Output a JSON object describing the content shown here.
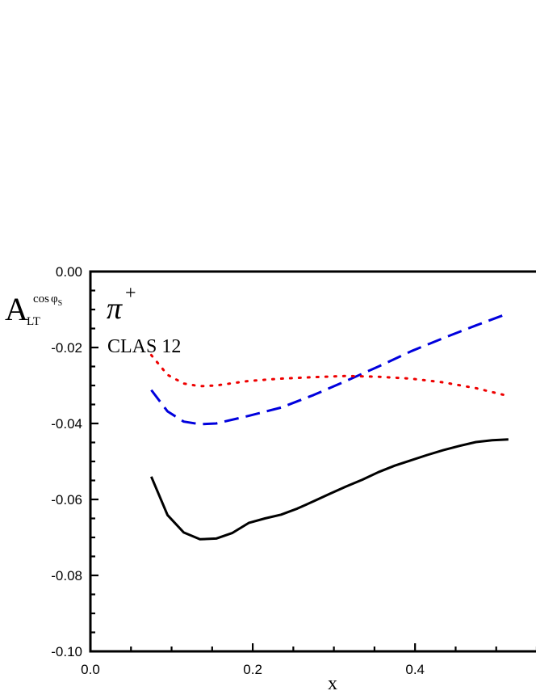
{
  "chart_data": {
    "type": "line",
    "xlabel": "x",
    "ylabel": {
      "base": "A",
      "subscript": "LT",
      "superscript_main": "cos",
      "superscript_phi": "φ",
      "superscript_sub": "S"
    },
    "annotations": {
      "particle": "π",
      "particle_charge": "+",
      "experiment": "CLAS 12"
    },
    "xlim": [
      0.0,
      0.55
    ],
    "ylim": [
      -0.1,
      0.0
    ],
    "x_ticks": [
      {
        "value": 0.0,
        "label": "0.0"
      },
      {
        "value": 0.2,
        "label": "0.2"
      },
      {
        "value": 0.4,
        "label": "0.4"
      }
    ],
    "y_ticks": [
      {
        "value": 0.0,
        "label": "0.00"
      },
      {
        "value": -0.02,
        "label": "-0.02"
      },
      {
        "value": -0.04,
        "label": "-0.04"
      },
      {
        "value": -0.06,
        "label": "-0.06"
      },
      {
        "value": -0.08,
        "label": "-0.08"
      },
      {
        "value": -0.1,
        "label": "-0.10"
      }
    ],
    "grid": false,
    "series": [
      {
        "style": "solid",
        "color": "#000000",
        "x": [
          0.075,
          0.095,
          0.115,
          0.135,
          0.155,
          0.175,
          0.195,
          0.215,
          0.235,
          0.255,
          0.275,
          0.295,
          0.315,
          0.335,
          0.355,
          0.375,
          0.395,
          0.415,
          0.435,
          0.455,
          0.475,
          0.495,
          0.515
        ],
        "values": [
          -0.054,
          -0.0641,
          -0.0687,
          -0.0705,
          -0.0703,
          -0.0688,
          -0.0662,
          -0.065,
          -0.064,
          -0.0624,
          -0.0605,
          -0.0585,
          -0.0566,
          -0.0548,
          -0.0528,
          -0.0511,
          -0.0497,
          -0.0483,
          -0.047,
          -0.0459,
          -0.0449,
          -0.0444,
          -0.0442
        ]
      },
      {
        "style": "dashed",
        "color": "#0000dd",
        "x": [
          0.075,
          0.095,
          0.115,
          0.135,
          0.155,
          0.195,
          0.235,
          0.275,
          0.315,
          0.355,
          0.395,
          0.435,
          0.475,
          0.515
        ],
        "values": [
          -0.0312,
          -0.0368,
          -0.0395,
          -0.0402,
          -0.04,
          -0.038,
          -0.0358,
          -0.0325,
          -0.0288,
          -0.025,
          -0.021,
          -0.0175,
          -0.0142,
          -0.011
        ]
      },
      {
        "style": "dotted",
        "color": "#ee0000",
        "x": [
          0.075,
          0.095,
          0.115,
          0.135,
          0.155,
          0.195,
          0.235,
          0.275,
          0.315,
          0.355,
          0.395,
          0.435,
          0.475,
          0.51
        ],
        "values": [
          -0.022,
          -0.0272,
          -0.0295,
          -0.0302,
          -0.03,
          -0.0288,
          -0.0282,
          -0.0278,
          -0.0275,
          -0.0277,
          -0.0282,
          -0.0292,
          -0.0307,
          -0.0325
        ]
      }
    ]
  }
}
